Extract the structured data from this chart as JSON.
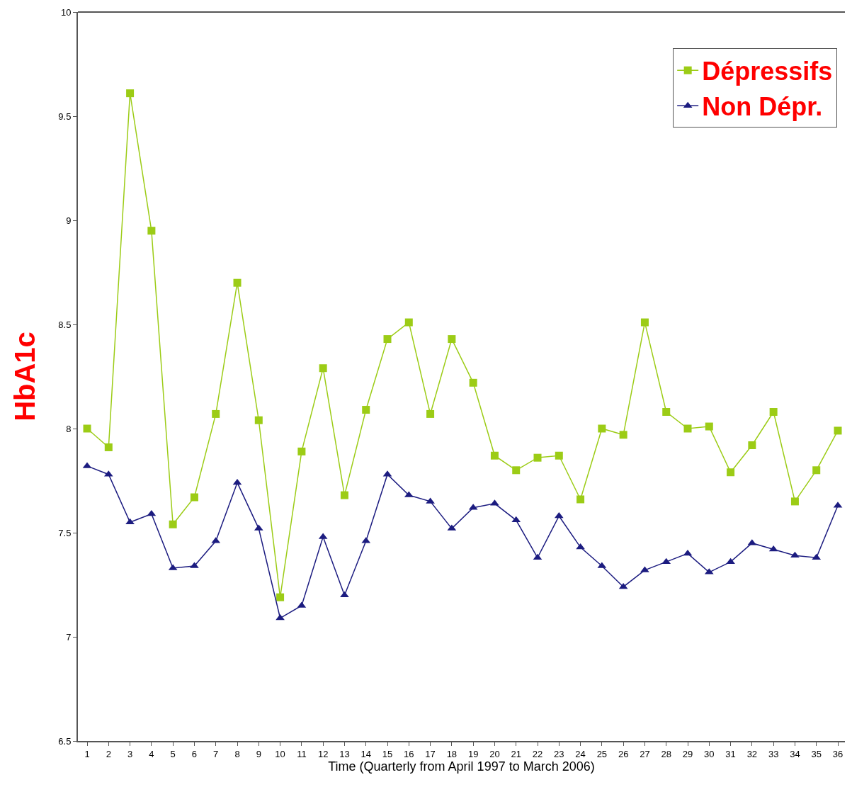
{
  "chart_data": {
    "type": "line",
    "xlabel": "Time (Quarterly from April 1997 to March 2006)",
    "ylabel": "HbA1c",
    "x": [
      1,
      2,
      3,
      4,
      5,
      6,
      7,
      8,
      9,
      10,
      11,
      12,
      13,
      14,
      15,
      16,
      17,
      18,
      19,
      20,
      21,
      22,
      23,
      24,
      25,
      26,
      27,
      28,
      29,
      30,
      31,
      32,
      33,
      34,
      35,
      36
    ],
    "series": [
      {
        "name": "Dépressifs",
        "color": "#9ccc16",
        "marker": "square",
        "values": [
          8.0,
          7.91,
          9.61,
          8.95,
          7.54,
          7.67,
          8.07,
          8.7,
          8.04,
          7.19,
          7.89,
          8.29,
          7.68,
          8.09,
          8.43,
          8.51,
          8.07,
          8.43,
          8.22,
          7.87,
          7.8,
          7.86,
          7.87,
          7.66,
          8.0,
          7.97,
          8.51,
          8.08,
          8.0,
          8.01,
          7.79,
          7.92,
          8.08,
          7.65,
          7.8,
          7.99
        ]
      },
      {
        "name": "Non Dépr.",
        "color": "#1c1c80",
        "marker": "triangle",
        "values": [
          7.82,
          7.78,
          7.55,
          7.59,
          7.33,
          7.34,
          7.46,
          7.74,
          7.52,
          7.09,
          7.15,
          7.48,
          7.2,
          7.46,
          7.78,
          7.68,
          7.65,
          7.52,
          7.62,
          7.64,
          7.56,
          7.38,
          7.58,
          7.43,
          7.34,
          7.24,
          7.32,
          7.36,
          7.4,
          7.31,
          7.36,
          7.45,
          7.42,
          7.39,
          7.38,
          7.63
        ]
      }
    ],
    "xlim": [
      0.57,
      36.33
    ],
    "xticks": [
      1,
      2,
      3,
      4,
      5,
      6,
      7,
      8,
      9,
      10,
      11,
      12,
      13,
      14,
      15,
      16,
      17,
      18,
      19,
      20,
      21,
      22,
      23,
      24,
      25,
      26,
      27,
      28,
      29,
      30,
      31,
      32,
      33,
      34,
      35,
      36
    ],
    "ylim": [
      6.5,
      10
    ],
    "yticks": [
      6.5,
      7,
      7.5,
      8,
      8.5,
      9,
      9.5,
      10
    ],
    "legend": "top right",
    "line_style": "solid"
  }
}
